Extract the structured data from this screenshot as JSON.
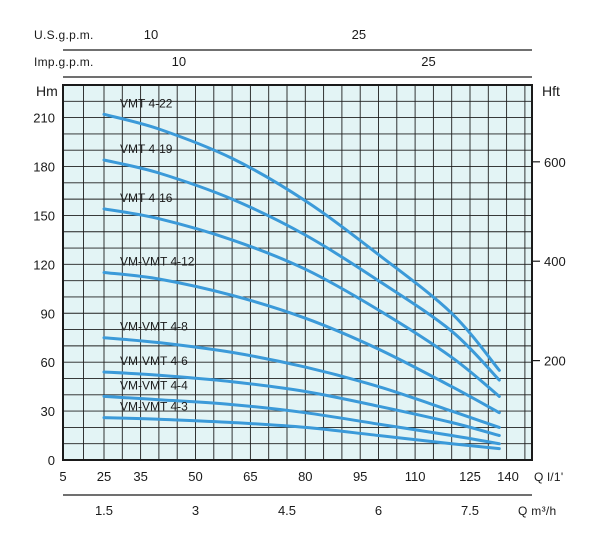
{
  "chart_data": {
    "type": "line",
    "plot_bg": "#e3f4f5",
    "curve_color": "#3b9ad9",
    "grid_color": "#1f1f1f",
    "grid": true,
    "xlim": [
      5,
      140
    ],
    "ylim": [
      0,
      230
    ],
    "x_unit_label": "Q l/1'",
    "y_left_label": "Hm",
    "y_right_label": "Hft",
    "x_ticks": [
      5,
      25,
      35,
      50,
      65,
      80,
      95,
      110,
      125,
      140
    ],
    "y_ticks": [
      0,
      30,
      60,
      90,
      120,
      150,
      180,
      210
    ],
    "y_right_ticks": [
      {
        "value": 200,
        "label": "200"
      },
      {
        "value": 400,
        "label": "400"
      },
      {
        "value": 600,
        "label": "600"
      }
    ],
    "ft_per_m": 3.28084,
    "top_axes": [
      {
        "label": "U.S.g.p.m.",
        "lpm_per_unit": 3.7854,
        "ticks": [
          {
            "value": 10,
            "label": "10"
          },
          {
            "value": 25,
            "label": "25"
          }
        ]
      },
      {
        "label": "Imp.g.p.m.",
        "lpm_per_unit": 4.546,
        "ticks": [
          {
            "value": 10,
            "label": "10"
          },
          {
            "value": 25,
            "label": "25"
          }
        ]
      }
    ],
    "bottom_axis": {
      "label": "Q m³/h",
      "lpm_per_unit": 16.6667,
      "ticks": [
        {
          "value": 1.5,
          "label": "1.5"
        },
        {
          "value": 3,
          "label": "3"
        },
        {
          "value": 4.5,
          "label": "4.5"
        },
        {
          "value": 6,
          "label": "6"
        },
        {
          "value": 7.5,
          "label": "7.5"
        }
      ]
    },
    "series": [
      {
        "name": "VMT 4-22",
        "x": [
          25,
          40,
          60,
          80,
          100,
          120,
          133
        ],
        "y": [
          212,
          203,
          185,
          159,
          126,
          90,
          55
        ]
      },
      {
        "name": "VMT 4-19",
        "x": [
          25,
          40,
          60,
          80,
          100,
          120,
          133
        ],
        "y": [
          184,
          176,
          160,
          138,
          110,
          79,
          49
        ]
      },
      {
        "name": "VMT 4-16",
        "x": [
          25,
          40,
          60,
          80,
          100,
          120,
          133
        ],
        "y": [
          154,
          148,
          135,
          117,
          92,
          63,
          39
        ]
      },
      {
        "name": "VM-VMT 4-12",
        "x": [
          25,
          40,
          60,
          80,
          100,
          120,
          133
        ],
        "y": [
          115,
          111,
          101,
          87,
          68,
          45,
          29
        ]
      },
      {
        "name": "VM-VMT 4-8",
        "x": [
          25,
          40,
          60,
          80,
          100,
          120,
          133
        ],
        "y": [
          75,
          72,
          66,
          57,
          45,
          30,
          20
        ]
      },
      {
        "name": "VM-VMT 4-6",
        "x": [
          25,
          40,
          60,
          80,
          100,
          120,
          133
        ],
        "y": [
          54,
          52,
          48,
          42,
          33,
          23,
          15
        ]
      },
      {
        "name": "VM-VMT 4-4",
        "x": [
          25,
          40,
          60,
          80,
          100,
          120,
          133
        ],
        "y": [
          39,
          37,
          34,
          29,
          22,
          15,
          10
        ]
      },
      {
        "name": "VM-VMT 4-3",
        "x": [
          25,
          40,
          60,
          80,
          100,
          120,
          133
        ],
        "y": [
          26,
          25,
          23,
          20,
          15,
          10,
          7
        ]
      }
    ]
  }
}
